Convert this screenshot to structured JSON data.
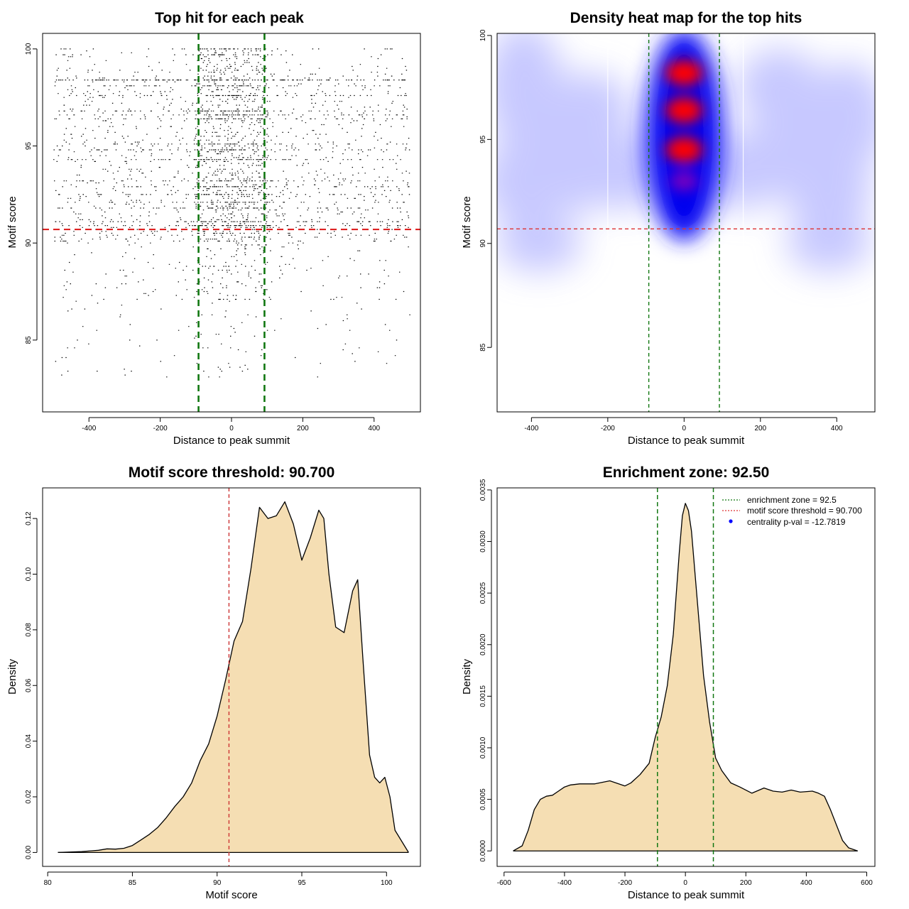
{
  "chart_data": [
    {
      "type": "scatter",
      "title": "Top hit for each peak",
      "xlabel": "Distance to peak summit",
      "ylabel": "Motif score",
      "xlim": [
        -530,
        530
      ],
      "ylim": [
        81.3,
        100.8
      ],
      "xticks": [
        -400,
        -200,
        0,
        200,
        400
      ],
      "yticks": [
        85,
        90,
        95,
        100
      ],
      "hlines": [
        {
          "y": 90.7,
          "color": "#dd2222",
          "style": "dashed"
        }
      ],
      "vlines": [
        {
          "x": -92.5,
          "color": "#117711",
          "style": "dashed"
        },
        {
          "x": 92.5,
          "color": "#117711",
          "style": "dashed"
        }
      ],
      "point_color": "#000000",
      "point_cloud": {
        "count": 4200,
        "x_range": [
          -500,
          500
        ],
        "y_range": [
          83,
          100
        ],
        "center_fraction": 0.38,
        "dense_rows": [
          100,
          99.7,
          98.4,
          98.1,
          97.6,
          96.8,
          96.6,
          96.4,
          95.1,
          94.8,
          94.3,
          93.2,
          92.9,
          92.5,
          92.1,
          91.8,
          91.1,
          90.9
        ]
      }
    },
    {
      "type": "heatmap",
      "title": "Density heat map for the top hits",
      "xlabel": "Distance to peak summit",
      "ylabel": "Motif score",
      "xlim": [
        -490,
        500
      ],
      "ylim": [
        81.9,
        100.1
      ],
      "xticks": [
        -400,
        -200,
        0,
        200,
        400
      ],
      "yticks": [
        85,
        90,
        95,
        100
      ],
      "colors": [
        "#ffffff",
        "#0000ff",
        "#ff0000"
      ],
      "hotspots": [
        {
          "x": 0,
          "y": 98.2,
          "weight": 1.0
        },
        {
          "x": 0,
          "y": 96.4,
          "weight": 1.0
        },
        {
          "x": 0,
          "y": 94.5,
          "weight": 1.0
        },
        {
          "x": 0,
          "y": 93.0,
          "weight": 0.55
        }
      ],
      "hlines": [
        {
          "y": 90.7,
          "color": "#dd3333",
          "style": "dashed"
        }
      ],
      "vlines": [
        {
          "x": -92.5,
          "color": "#117711",
          "style": "dashed"
        },
        {
          "x": 92.5,
          "color": "#117711",
          "style": "dashed"
        },
        {
          "x": -200,
          "color": "#ffffff",
          "style": "solid"
        },
        {
          "x": 155,
          "color": "#ffffff",
          "style": "solid"
        }
      ]
    },
    {
      "type": "area",
      "title": "Motif score threshold: 90.700",
      "xlabel": "Motif score",
      "ylabel": "Density",
      "xlim": [
        79.7,
        102.0
      ],
      "ylim": [
        -0.005,
        0.131
      ],
      "xticks": [
        80,
        85,
        90,
        95,
        100
      ],
      "yticks": [
        0.0,
        0.02,
        0.04,
        0.06,
        0.08,
        0.1,
        0.12
      ],
      "ytick_labels": [
        "0.00",
        "0.02",
        "0.04",
        "0.06",
        "0.08",
        "0.10",
        "0.12"
      ],
      "fill": "#f5deb3",
      "x": [
        80.6,
        82,
        83,
        83.5,
        84,
        84.5,
        85,
        85.5,
        86,
        86.5,
        87,
        87.5,
        88,
        88.5,
        89,
        89.5,
        90,
        90.5,
        91,
        91.5,
        92,
        92.5,
        93,
        93.5,
        94,
        94.5,
        95,
        95.5,
        96,
        96.3,
        96.6,
        97,
        97.5,
        98,
        98.3,
        98.6,
        99,
        99.3,
        99.6,
        99.9,
        100.2,
        100.5,
        101.3
      ],
      "values": [
        0.0,
        0.0003,
        0.0008,
        0.0013,
        0.0012,
        0.0015,
        0.0025,
        0.0045,
        0.0065,
        0.009,
        0.0125,
        0.0165,
        0.02,
        0.025,
        0.033,
        0.039,
        0.049,
        0.062,
        0.076,
        0.083,
        0.102,
        0.124,
        0.12,
        0.121,
        0.126,
        0.118,
        0.105,
        0.113,
        0.123,
        0.12,
        0.1,
        0.081,
        0.079,
        0.094,
        0.098,
        0.07,
        0.035,
        0.027,
        0.025,
        0.027,
        0.02,
        0.008,
        0.0
      ]
    },
    {
      "type": "area",
      "title": "Enrichment zone: 92.50",
      "xlabel": "Distance to peak summit",
      "ylabel": "Density",
      "xlim": [
        -623,
        627
      ],
      "ylim": [
        -0.00015,
        0.00352
      ],
      "xticks": [
        -600,
        -400,
        -200,
        0,
        200,
        400,
        600
      ],
      "yticks": [
        0.0,
        0.0005,
        0.001,
        0.0015,
        0.002,
        0.0025,
        0.003,
        0.0035
      ],
      "ytick_labels": [
        "0.0000",
        "0.0005",
        "0.0010",
        "0.0015",
        "0.0020",
        "0.0025",
        "0.0030",
        "0.0035"
      ],
      "fill": "#f5deb3",
      "vlines": [
        {
          "x": -92.5,
          "color": "#117711",
          "style": "dashed"
        },
        {
          "x": 92.5,
          "color": "#117711",
          "style": "dashed"
        }
      ],
      "x": [
        -570,
        -540,
        -520,
        -500,
        -480,
        -460,
        -440,
        -420,
        -400,
        -380,
        -350,
        -300,
        -250,
        -200,
        -180,
        -150,
        -120,
        -100,
        -80,
        -60,
        -40,
        -20,
        -10,
        0,
        10,
        20,
        40,
        60,
        80,
        100,
        120,
        150,
        180,
        220,
        260,
        290,
        320,
        350,
        380,
        420,
        440,
        460,
        480,
        500,
        520,
        540,
        570
      ],
      "values": [
        0.0,
        5e-05,
        0.0002,
        0.0004,
        0.0005,
        0.00053,
        0.00054,
        0.00058,
        0.00062,
        0.00064,
        0.00065,
        0.00065,
        0.00068,
        0.00063,
        0.00066,
        0.00074,
        0.00085,
        0.0011,
        0.0013,
        0.0016,
        0.0021,
        0.0029,
        0.00325,
        0.00337,
        0.0033,
        0.0031,
        0.0024,
        0.0017,
        0.00125,
        0.0009,
        0.00078,
        0.00066,
        0.00062,
        0.00056,
        0.00061,
        0.00058,
        0.00057,
        0.00059,
        0.00057,
        0.00058,
        0.00056,
        0.00053,
        0.0004,
        0.00025,
        0.0001,
        3e-05,
        0.0
      ]
    }
  ],
  "legend": [
    {
      "label": "enrichment zone = 92.5",
      "color": "#117711",
      "kind": "line"
    },
    {
      "label": "motif score threshold = 90.700",
      "color": "#dd3333",
      "kind": "line"
    },
    {
      "label": "centrality p-val = -12.7819",
      "color": "#0000ff",
      "kind": "point"
    }
  ]
}
